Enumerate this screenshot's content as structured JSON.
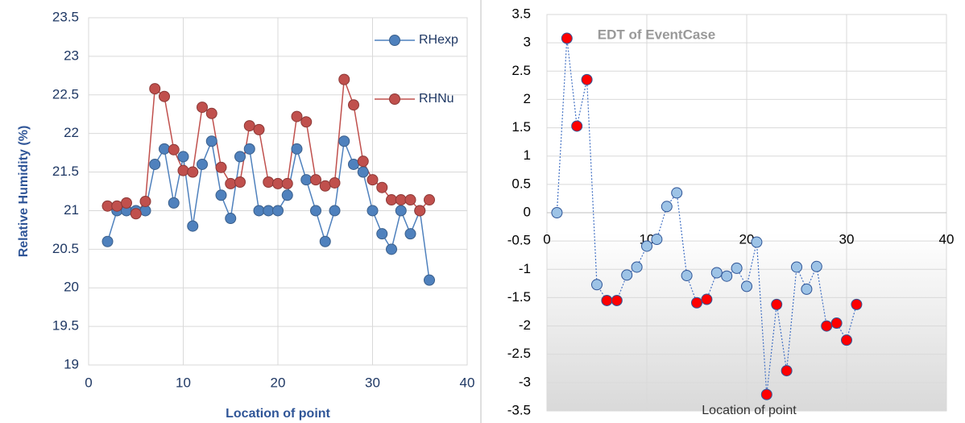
{
  "chart_data": [
    {
      "type": "line",
      "xlabel": "Location of point",
      "ylabel": "Relative Humidity (%)",
      "x": [
        2,
        3,
        4,
        5,
        6,
        7,
        8,
        9,
        10,
        11,
        12,
        13,
        14,
        15,
        16,
        17,
        18,
        19,
        20,
        21,
        22,
        23,
        24,
        25,
        26,
        27,
        28,
        29,
        30,
        31,
        32,
        33,
        34,
        35,
        36
      ],
      "series": [
        {
          "name": "RHexp",
          "color": "#4f81bd",
          "values": [
            20.6,
            21.0,
            21.0,
            21.0,
            21.0,
            21.6,
            21.8,
            21.1,
            21.7,
            20.8,
            21.6,
            21.9,
            21.2,
            20.9,
            21.7,
            21.8,
            21.0,
            21.0,
            21.0,
            21.2,
            21.8,
            21.4,
            21.0,
            20.6,
            21.0,
            21.9,
            21.6,
            21.5,
            21.0,
            20.7,
            20.5,
            21.0,
            20.7,
            21.0,
            20.1
          ]
        },
        {
          "name": "RHNu",
          "color": "#c0504d",
          "values": [
            21.06,
            21.06,
            21.1,
            20.96,
            21.12,
            22.58,
            22.48,
            21.79,
            21.52,
            21.5,
            22.34,
            22.26,
            21.56,
            21.35,
            21.37,
            22.1,
            22.05,
            21.37,
            21.35,
            21.35,
            22.22,
            22.15,
            21.4,
            21.32,
            21.36,
            22.7,
            22.37,
            21.64,
            21.4,
            21.3,
            21.14,
            21.14,
            21.14,
            21.0,
            21.14
          ]
        }
      ],
      "xlim": [
        0,
        40
      ],
      "xticks": [
        0,
        10,
        20,
        30,
        40
      ],
      "ylim": [
        19,
        23.5
      ],
      "yticks": [
        19,
        19.5,
        20,
        20.5,
        21,
        21.5,
        22,
        22.5,
        23,
        23.5
      ],
      "grid": true,
      "legend": "upper right"
    },
    {
      "type": "scatter",
      "title": "EDT of EventCase",
      "xlabel": "Location of point",
      "x": [
        1,
        2,
        3,
        4,
        5,
        6,
        7,
        8,
        9,
        10,
        11,
        12,
        13,
        14,
        15,
        16,
        17,
        18,
        19,
        20,
        21,
        22,
        23,
        24,
        25,
        26,
        27,
        28,
        29,
        30,
        31
      ],
      "values": [
        0,
        3.08,
        1.53,
        2.35,
        -1.27,
        -1.55,
        -1.55,
        -1.1,
        -0.96,
        -0.59,
        -0.47,
        0.11,
        0.35,
        -1.11,
        -1.59,
        -1.53,
        -1.06,
        -1.12,
        -0.98,
        -1.3,
        -0.52,
        -3.21,
        -1.62,
        -2.79,
        -0.96,
        -1.35,
        -0.95,
        -2.0,
        -1.95,
        -2.25,
        -1.62
      ],
      "point_colors": [
        "#9dc3e6",
        "#ff0000",
        "#ff0000",
        "#ff0000",
        "#9dc3e6",
        "#ff0000",
        "#ff0000",
        "#9dc3e6",
        "#9dc3e6",
        "#9dc3e6",
        "#9dc3e6",
        "#9dc3e6",
        "#9dc3e6",
        "#9dc3e6",
        "#ff0000",
        "#ff0000",
        "#9dc3e6",
        "#9dc3e6",
        "#9dc3e6",
        "#9dc3e6",
        "#9dc3e6",
        "#ff0000",
        "#ff0000",
        "#ff0000",
        "#9dc3e6",
        "#9dc3e6",
        "#9dc3e6",
        "#ff0000",
        "#ff0000",
        "#ff0000",
        "#ff0000"
      ],
      "line_color": "#4472c4",
      "line_style": "dotted",
      "xlim": [
        0,
        40
      ],
      "xticks": [
        0,
        10,
        20,
        30,
        40
      ],
      "ylim": [
        -3.5,
        3.5
      ],
      "yticks": [
        -3.5,
        -3,
        -2.5,
        -2,
        -1.5,
        -1,
        -0.5,
        0,
        0.5,
        1,
        1.5,
        2,
        2.5,
        3,
        3.5
      ],
      "grid": true
    }
  ]
}
